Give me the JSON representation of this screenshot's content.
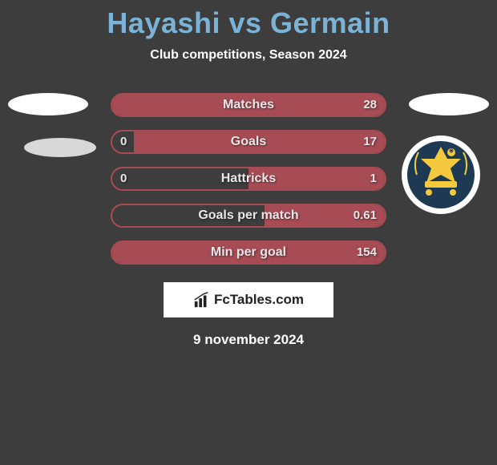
{
  "title": "Hayashi vs Germain",
  "subtitle": "Club competitions, Season 2024",
  "title_color": "#7bb3d6",
  "background_color": "#3d3d3d",
  "bar_color": "#a74b54",
  "rows": [
    {
      "label": "Matches",
      "left_val": "",
      "right_val": "28",
      "left_pct": 0,
      "right_pct": 100
    },
    {
      "label": "Goals",
      "left_val": "0",
      "right_val": "17",
      "left_pct": 0,
      "right_pct": 92
    },
    {
      "label": "Hattricks",
      "left_val": "0",
      "right_val": "1",
      "left_pct": 0,
      "right_pct": 50
    },
    {
      "label": "Goals per match",
      "left_val": "",
      "right_val": "0.61",
      "left_pct": 0,
      "right_pct": 44
    },
    {
      "label": "Min per goal",
      "left_val": "",
      "right_val": "154",
      "left_pct": 0,
      "right_pct": 100
    }
  ],
  "logo_text": "FcTables.com",
  "date_text": "9 november 2024",
  "club_badge": {
    "outer": "#ffffff",
    "inner": "#1e3a52",
    "accent": "#f5c93d"
  }
}
